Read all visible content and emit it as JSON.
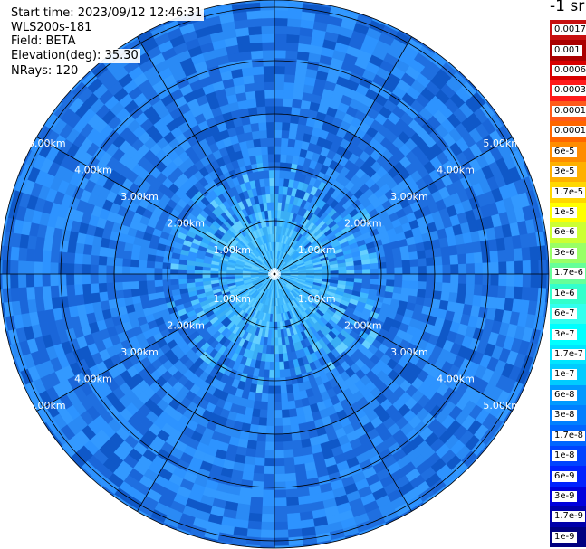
{
  "header": {
    "start_time": "Start time: 2023/09/12 12:46:31",
    "instrument": "WLS200s-181",
    "field": "Field: BETA",
    "elevation": "Elevation(deg): 35.30",
    "nrays": "NRays: 120"
  },
  "unit_label": "-1 sr",
  "colors": {
    "ring_line": "#000000",
    "range_label": "#ffffff",
    "noise_palette": [
      "#1f6fe0",
      "#2a8af5",
      "#3399ff",
      "#1a66d9",
      "#2d93ff",
      "#0f58c8"
    ],
    "center_palette": [
      "#3fb8ff",
      "#52c7ff",
      "#2fa8ff",
      "#66d0ff",
      "#3aaef5"
    ]
  },
  "chart_data": {
    "type": "ppi-polar",
    "title": "",
    "field": "BETA",
    "elevation_deg": 35.3,
    "nrays": 120,
    "range_rings_km": [
      1.0,
      2.0,
      3.0,
      4.0,
      5.0
    ],
    "range_ring_labels": [
      "1.00km",
      "2.00km",
      "3.00km",
      "4.00km",
      "5.00km"
    ],
    "max_range_km": 5.0,
    "radial_lines_deg": [
      0,
      30,
      60,
      90,
      120,
      150,
      180,
      210,
      240,
      270,
      300,
      330
    ],
    "label_azimuths_deg": [
      60,
      120,
      240,
      300
    ],
    "colorbar": {
      "unit": "-1 sr",
      "entries": [
        {
          "label": "0.0017",
          "color": "#c81010"
        },
        {
          "label": "0.001",
          "color": "#aa0000"
        },
        {
          "label": "0.0006",
          "color": "#d80000"
        },
        {
          "label": "0.0003",
          "color": "#ff1a1a"
        },
        {
          "label": "0.00017",
          "color": "#ff5a1a"
        },
        {
          "label": "0.0001",
          "color": "#ff6600"
        },
        {
          "label": "6e-5",
          "color": "#ff8c00"
        },
        {
          "label": "3e-5",
          "color": "#ffb000"
        },
        {
          "label": "1.7e-5",
          "color": "#ffd700"
        },
        {
          "label": "1e-5",
          "color": "#ffff00"
        },
        {
          "label": "6e-6",
          "color": "#ccff33"
        },
        {
          "label": "3e-6",
          "color": "#99ff66"
        },
        {
          "label": "1.7e-6",
          "color": "#66ff99"
        },
        {
          "label": "1e-6",
          "color": "#33ffcc"
        },
        {
          "label": "6e-7",
          "color": "#33ffee"
        },
        {
          "label": "3e-7",
          "color": "#00ffff"
        },
        {
          "label": "1.7e-7",
          "color": "#00e5ff"
        },
        {
          "label": "1e-7",
          "color": "#00ccff"
        },
        {
          "label": "6e-8",
          "color": "#0099ff"
        },
        {
          "label": "3e-8",
          "color": "#007fff"
        },
        {
          "label": "1.7e-8",
          "color": "#0066ff"
        },
        {
          "label": "1e-8",
          "color": "#0044ff"
        },
        {
          "label": "6e-9",
          "color": "#0022ff"
        },
        {
          "label": "3e-9",
          "color": "#0000dd"
        },
        {
          "label": "1.7e-9",
          "color": "#0000aa"
        },
        {
          "label": "1e-9",
          "color": "#000080"
        }
      ]
    }
  }
}
